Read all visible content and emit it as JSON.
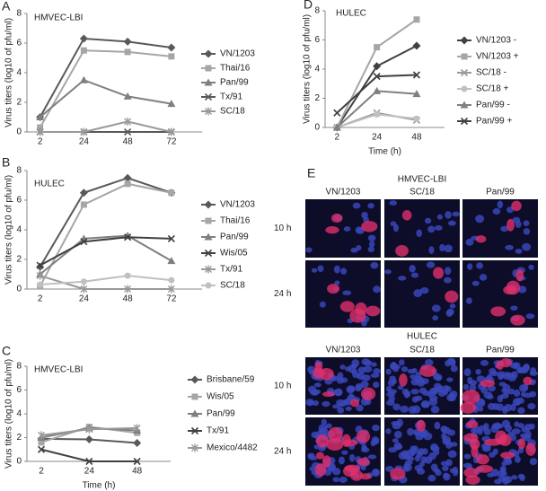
{
  "chart_data": [
    {
      "type": "line",
      "panel_label": "A",
      "title": "HMVEC-LBI",
      "y_label": "Virus titers (log10 of pfu/ml)",
      "categories": [
        "2",
        "24",
        "48",
        "72"
      ],
      "ylim": [
        0,
        8
      ],
      "yticks": [
        0,
        2,
        4,
        6,
        8
      ],
      "series": [
        {
          "name": "VN/1203",
          "color": "#595959",
          "marker": "diamond",
          "values": [
            1.0,
            6.3,
            6.1,
            5.7
          ]
        },
        {
          "name": "Thai/16",
          "color": "#a6a6a6",
          "marker": "square",
          "values": [
            0.3,
            5.5,
            5.4,
            5.1
          ]
        },
        {
          "name": "Pan/99",
          "color": "#7f7f7f",
          "marker": "triangle",
          "values": [
            1.0,
            3.5,
            2.4,
            1.9
          ]
        },
        {
          "name": "Tx/91",
          "color": "#595959",
          "marker": "x",
          "values": [
            0,
            0,
            0,
            0
          ]
        },
        {
          "name": "SC/18",
          "color": "#999999",
          "marker": "star",
          "values": [
            0,
            0,
            0.7,
            0
          ]
        }
      ]
    },
    {
      "type": "line",
      "panel_label": "B",
      "title": "HULEC",
      "y_label": "Virus titers (log10 of pfu/ml)",
      "categories": [
        "2",
        "24",
        "48",
        "72"
      ],
      "ylim": [
        0,
        8
      ],
      "yticks": [
        0,
        2,
        4,
        6,
        8
      ],
      "series": [
        {
          "name": "VN/1203",
          "color": "#595959",
          "marker": "diamond",
          "values": [
            1.5,
            6.5,
            7.5,
            6.5
          ]
        },
        {
          "name": "Thai/16",
          "color": "#a6a6a6",
          "marker": "square",
          "values": [
            0.2,
            5.7,
            7.1,
            6.5
          ]
        },
        {
          "name": "Pan/99",
          "color": "#7f7f7f",
          "marker": "triangle",
          "values": [
            1.0,
            3.4,
            3.6,
            1.9
          ]
        },
        {
          "name": "Wis/05",
          "color": "#404040",
          "marker": "x",
          "values": [
            1.6,
            3.2,
            3.5,
            3.4
          ]
        },
        {
          "name": "Tx/91",
          "color": "#999999",
          "marker": "star",
          "values": [
            0.9,
            0,
            0,
            0
          ]
        },
        {
          "name": "SC/18",
          "color": "#c0c0c0",
          "marker": "circle",
          "values": [
            0.3,
            0.5,
            0.9,
            0.6
          ]
        }
      ]
    },
    {
      "type": "line",
      "panel_label": "C",
      "title": "HMVEC-LBI",
      "y_label": "Virus titers (log10 of pfu/ml)",
      "x_label": "Time (h)",
      "categories": [
        "2",
        "24",
        "48"
      ],
      "ylim": [
        0,
        8
      ],
      "yticks": [
        0,
        2,
        4,
        6,
        8
      ],
      "series": [
        {
          "name": "Brisbane/59",
          "color": "#595959",
          "marker": "diamond",
          "values": [
            1.9,
            1.85,
            1.55
          ]
        },
        {
          "name": "Wis/05",
          "color": "#a6a6a6",
          "marker": "square",
          "values": [
            1.6,
            2.9,
            2.4
          ]
        },
        {
          "name": "Pan/99",
          "color": "#7f7f7f",
          "marker": "triangle",
          "values": [
            2.0,
            2.8,
            2.6
          ]
        },
        {
          "name": "Tx/91",
          "color": "#404040",
          "marker": "x",
          "values": [
            1.0,
            0,
            0
          ]
        },
        {
          "name": "Mexico/4482",
          "color": "#999999",
          "marker": "star",
          "values": [
            2.2,
            2.7,
            2.8
          ]
        }
      ]
    },
    {
      "type": "line",
      "panel_label": "D",
      "title": "HULEC",
      "y_label": "Virus titers (log10 of pfu/ml)",
      "x_label": "Time (h)",
      "categories": [
        "2",
        "24",
        "48"
      ],
      "ylim": [
        0,
        8
      ],
      "yticks": [
        0,
        2,
        4,
        6,
        8
      ],
      "series": [
        {
          "name": "VN/1203 -",
          "color": "#404040",
          "marker": "diamond",
          "values": [
            0,
            4.2,
            5.6
          ]
        },
        {
          "name": "VN/1203 +",
          "color": "#a6a6a6",
          "marker": "square",
          "values": [
            0,
            5.5,
            7.4
          ]
        },
        {
          "name": "SC/18 -",
          "color": "#999999",
          "marker": "x",
          "values": [
            0,
            1.0,
            0.5
          ]
        },
        {
          "name": "SC/18 +",
          "color": "#c0c0c0",
          "marker": "circle",
          "values": [
            0,
            0.9,
            0.6
          ]
        },
        {
          "name": "Pan/99 -",
          "color": "#7f7f7f",
          "marker": "triangle",
          "values": [
            0,
            2.5,
            2.3
          ]
        },
        {
          "name": "Pan/99 +",
          "color": "#404040",
          "marker": "x",
          "values": [
            1.0,
            3.5,
            3.6
          ]
        }
      ]
    }
  ],
  "panel_e": {
    "panel_label": "E",
    "groups": [
      {
        "title": "HMVEC-LBI",
        "columns": [
          "VN/1203",
          "SC/18",
          "Pan/99"
        ],
        "rows": [
          "10 h",
          "24 h"
        ]
      },
      {
        "title": "HULEC",
        "columns": [
          "VN/1203",
          "SC/18",
          "Pan/99"
        ],
        "rows": [
          "10 h",
          "24 h"
        ]
      }
    ]
  }
}
